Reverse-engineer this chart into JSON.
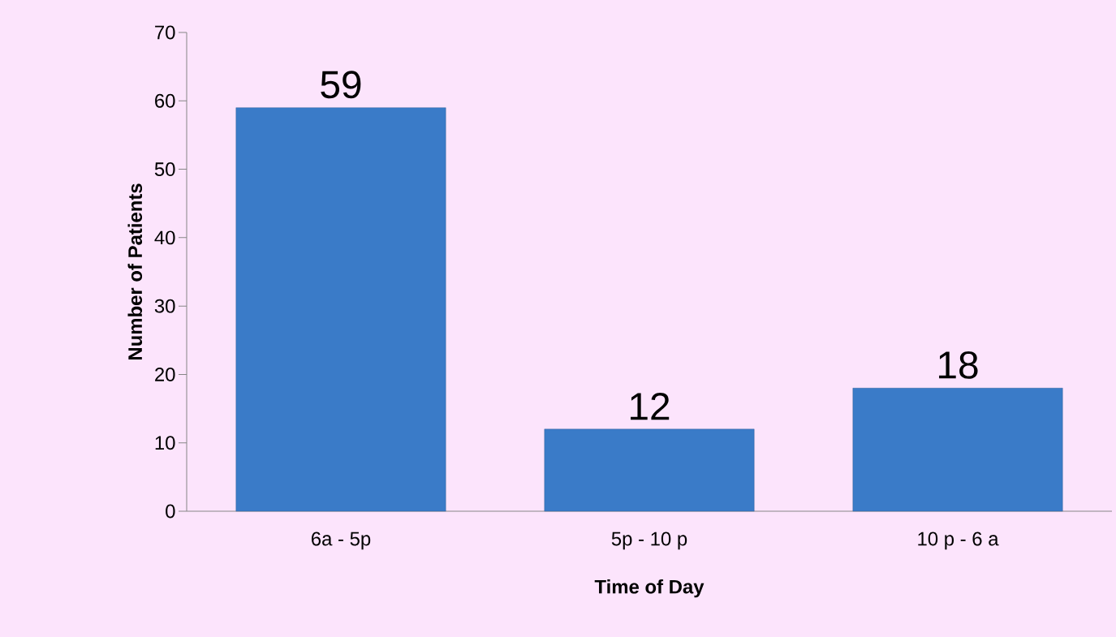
{
  "chart_data": {
    "type": "bar",
    "categories": [
      "6a - 5p",
      "5p - 10 p",
      "10 p - 6 a"
    ],
    "values": [
      59,
      12,
      18
    ],
    "color": "#3a7bc8",
    "xlabel": "Time of Day",
    "ylabel": "Number of Patients",
    "ylim": [
      0,
      70
    ],
    "yticks": [
      0,
      10,
      20,
      30,
      40,
      50,
      60,
      70
    ],
    "data_labels": true,
    "grid": false
  }
}
